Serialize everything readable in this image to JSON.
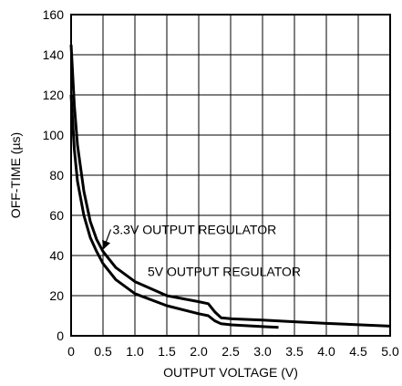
{
  "chart_data": {
    "type": "line",
    "title": "",
    "xlabel": "OUTPUT VOLTAGE (V)",
    "ylabel": "OFF-TIME (µs)",
    "xlim": [
      0,
      5
    ],
    "ylim": [
      0,
      160
    ],
    "grid": true,
    "legend": "none",
    "x_ticks": [
      "0",
      "0.5",
      "1.0",
      "1.5",
      "2.0",
      "2.5",
      "3.0",
      "3.5",
      "4.0",
      "4.5",
      "5.0"
    ],
    "y_ticks": [
      "0",
      "20",
      "40",
      "60",
      "80",
      "100",
      "120",
      "140",
      "160"
    ],
    "colors": {
      "line": "#000000",
      "grid": "#000000",
      "background": "#ffffff"
    },
    "series": [
      {
        "name": "5V OUTPUT REGULATOR",
        "x": [
          0,
          0.05,
          0.1,
          0.2,
          0.3,
          0.4,
          0.5,
          0.7,
          1.0,
          1.5,
          2.0,
          2.15,
          2.25,
          2.35,
          2.5,
          3.0,
          3.5,
          4.0,
          4.5,
          5.0
        ],
        "y": [
          145,
          115,
          95,
          72,
          57,
          48,
          42,
          34,
          27,
          20,
          17,
          16,
          12,
          9,
          8.5,
          7.8,
          7,
          6.2,
          5.5,
          4.8
        ]
      },
      {
        "name": "3.3V OUTPUT REGULATOR",
        "x": [
          0,
          0.05,
          0.1,
          0.2,
          0.3,
          0.4,
          0.5,
          0.7,
          1.0,
          1.5,
          2.0,
          2.15,
          2.25,
          2.35,
          2.5,
          3.0,
          3.25
        ],
        "y": [
          120,
          93,
          77,
          60,
          49,
          42,
          36,
          28,
          21,
          15,
          11,
          10,
          7.5,
          6,
          5.5,
          4.6,
          4.2
        ]
      }
    ],
    "annotations": [
      {
        "text": "3.3V OUTPUT REGULATOR",
        "x": 0.65,
        "y": 53,
        "target_x": 0.48,
        "target_y": 43
      },
      {
        "text": "5V OUTPUT REGULATOR",
        "x": 1.2,
        "y": 32
      }
    ]
  }
}
